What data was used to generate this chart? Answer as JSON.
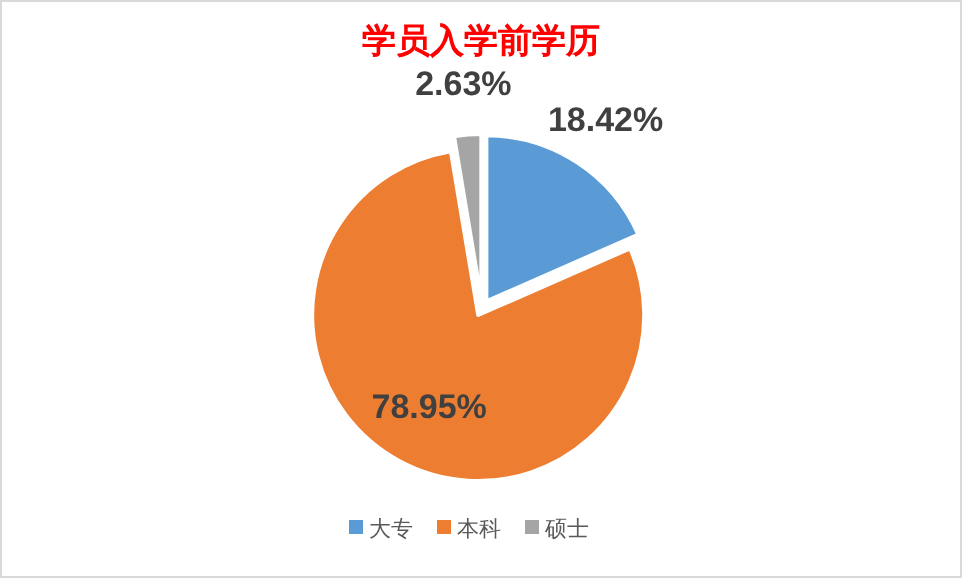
{
  "chart_data": {
    "type": "pie",
    "title": "学员入学前学历",
    "categories": [
      "大专",
      "本科",
      "硕士"
    ],
    "values": [
      18.42,
      78.95,
      2.63
    ],
    "colors": [
      "#5b9bd5",
      "#ed7d31",
      "#a5a5a5"
    ],
    "value_labels": [
      "18.42%",
      "78.95%",
      "2.63%"
    ],
    "legend": "bottom"
  }
}
